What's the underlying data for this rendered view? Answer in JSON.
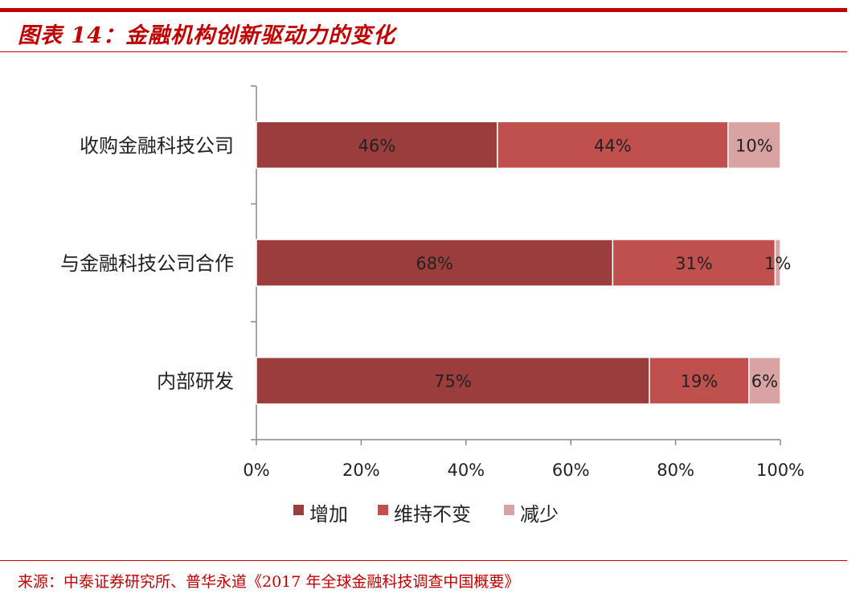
{
  "header": {
    "title": "图表 14：金融机构创新驱动力的变化"
  },
  "footer": {
    "source": "来源：中泰证券研究所、普华永道《2017 年全球金融科技调查中国概要》"
  },
  "chart_data": {
    "type": "bar",
    "orientation": "horizontal",
    "stacked": true,
    "categories": [
      "收购金融科技公司",
      "与金融科技公司合作",
      "内部研发"
    ],
    "series": [
      {
        "name": "增加",
        "values": [
          46,
          68,
          75
        ],
        "labels": [
          "46%",
          "68%",
          "75%"
        ],
        "color": "#9c3d3d"
      },
      {
        "name": "维持不变",
        "values": [
          44,
          31,
          19
        ],
        "labels": [
          "44%",
          "31%",
          "19%"
        ],
        "color": "#c0504d"
      },
      {
        "name": "减少",
        "values": [
          10,
          1,
          6
        ],
        "labels": [
          "10%",
          "1%",
          "6%"
        ],
        "color": "#d9a3a3"
      }
    ],
    "xlim": [
      0,
      100
    ],
    "xticks": [
      0,
      20,
      40,
      60,
      80,
      100
    ],
    "xtick_labels": [
      "0%",
      "20%",
      "40%",
      "60%",
      "80%",
      "100%"
    ],
    "grid": false,
    "legend_position": "bottom"
  }
}
